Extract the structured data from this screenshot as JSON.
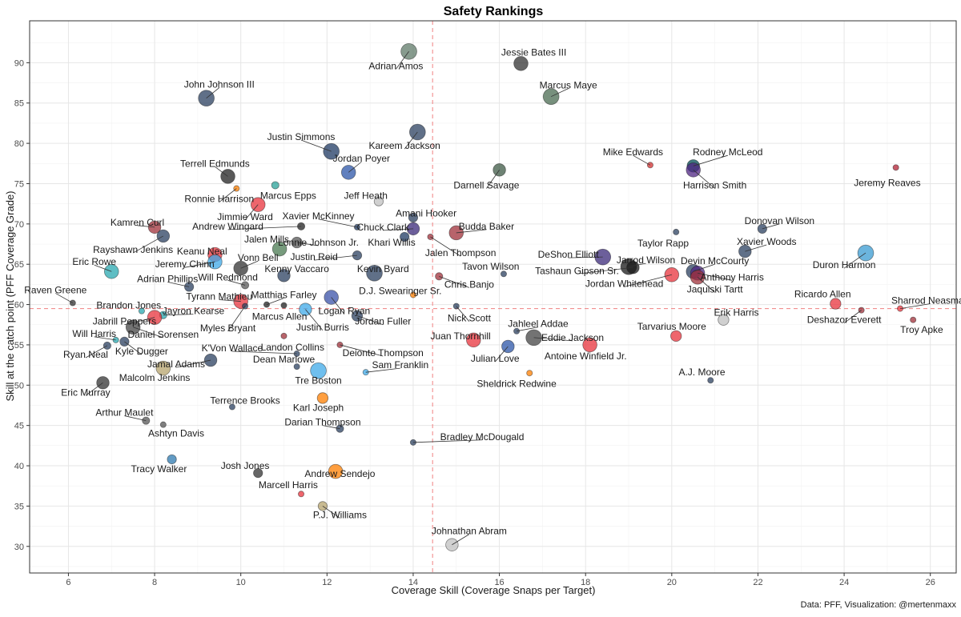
{
  "chart_data": {
    "type": "scatter",
    "title": "Safety Rankings",
    "xlabel": "Coverage Skill (Coverage Snaps per Target)",
    "ylabel": "Skill at the catch point (PFF Coverage Grade)",
    "caption": "Data: PFF, Visualization: @mertenmaxx",
    "xlim": [
      5.1,
      26.6
    ],
    "ylim": [
      26.7,
      95.2
    ],
    "xticks": [
      6,
      8,
      10,
      12,
      14,
      16,
      18,
      20,
      22,
      24,
      26
    ],
    "yticks": [
      30,
      35,
      40,
      45,
      50,
      55,
      60,
      65,
      70,
      75,
      80,
      85,
      90
    ],
    "ref_lines": {
      "x": 14.45,
      "y": 59.5
    },
    "grid": true,
    "points": [
      {
        "name": "Adrian Amos",
        "x": 13.9,
        "y": 91.4,
        "size": 8,
        "color": "#5f7a68",
        "lx": 13.6,
        "ly": 89.6
      },
      {
        "name": "Jessie Bates III",
        "x": 16.5,
        "y": 89.9,
        "size": 7,
        "color": "#333333",
        "lx": 16.8,
        "ly": 91.3
      },
      {
        "name": "Marcus Maye",
        "x": 17.2,
        "y": 85.8,
        "size": 8,
        "color": "#4a6b52",
        "lx": 17.6,
        "ly": 87.2
      },
      {
        "name": "John Johnson III",
        "x": 9.2,
        "y": 85.6,
        "size": 8,
        "color": "#2b4060",
        "lx": 9.5,
        "ly": 87.3
      },
      {
        "name": "Kareem Jackson",
        "x": 14.1,
        "y": 81.4,
        "size": 8,
        "color": "#2b4060",
        "lx": 13.8,
        "ly": 79.7
      },
      {
        "name": "Justin Simmons",
        "x": 12.1,
        "y": 79.0,
        "size": 8,
        "color": "#1f3a63",
        "lx": 11.4,
        "ly": 80.8
      },
      {
        "name": "Darnell Savage",
        "x": 16.0,
        "y": 76.7,
        "size": 6,
        "color": "#3d5a45",
        "lx": 15.7,
        "ly": 74.8
      },
      {
        "name": "Jordan Poyer",
        "x": 12.5,
        "y": 76.4,
        "size": 7,
        "color": "#2c56a8",
        "lx": 12.8,
        "ly": 78.1
      },
      {
        "name": "Mike Edwards",
        "x": 19.5,
        "y": 77.3,
        "size": 2,
        "color": "#d32f2f",
        "lx": 19.1,
        "ly": 78.9
      },
      {
        "name": "Rodney McLeod",
        "x": 20.5,
        "y": 77.2,
        "size": 6,
        "color": "#004c54",
        "lx": 21.3,
        "ly": 78.9
      },
      {
        "name": "Harrison Smith",
        "x": 20.5,
        "y": 76.7,
        "size": 7,
        "color": "#4f2683",
        "lx": 21.0,
        "ly": 74.8
      },
      {
        "name": "Jeremy Reaves",
        "x": 25.2,
        "y": 77.0,
        "size": 2,
        "color": "#b22234",
        "lx": 25.0,
        "ly": 75.1
      },
      {
        "name": "Terrell Edmunds",
        "x": 9.7,
        "y": 75.9,
        "size": 7,
        "color": "#222222",
        "lx": 9.4,
        "ly": 77.5
      },
      {
        "name": "Ronnie Harrison",
        "x": 9.9,
        "y": 74.4,
        "size": 2,
        "color": "#ff7f00",
        "lx": 9.5,
        "ly": 73.1
      },
      {
        "name": "Marcus Epps",
        "x": 10.8,
        "y": 74.8,
        "size": 3,
        "color": "#2aa198",
        "lx": 11.1,
        "ly": 73.5
      },
      {
        "name": "Jeff Heath",
        "x": 13.2,
        "y": 72.8,
        "size": 4,
        "color": "#c0c0c0",
        "lx": 12.9,
        "ly": 73.5
      },
      {
        "name": "Jimmie Ward",
        "x": 10.4,
        "y": 72.4,
        "size": 7,
        "color": "#e8333c",
        "lx": 10.1,
        "ly": 70.9
      },
      {
        "name": "Xavier McKinney",
        "x": 12.7,
        "y": 69.6,
        "size": 2,
        "color": "#1f3a63",
        "lx": 11.8,
        "ly": 71.0
      },
      {
        "name": "Amani Hooker",
        "x": 14.0,
        "y": 70.8,
        "size": 4,
        "color": "#2b4060",
        "lx": 14.3,
        "ly": 71.3
      },
      {
        "name": "Kamren Curl",
        "x": 8.0,
        "y": 69.6,
        "size": 6,
        "color": "#a0303a",
        "lx": 7.6,
        "ly": 70.2
      },
      {
        "name": "Andrew Wingard",
        "x": 11.4,
        "y": 69.7,
        "size": 3,
        "color": "#222222",
        "lx": 9.7,
        "ly": 69.7
      },
      {
        "name": "Chuck Clark",
        "x": 14.0,
        "y": 69.4,
        "size": 6,
        "color": "#3b2a7a",
        "lx": 13.3,
        "ly": 69.6
      },
      {
        "name": "Budda Baker",
        "x": 15.0,
        "y": 68.9,
        "size": 7,
        "color": "#a0303a",
        "lx": 15.7,
        "ly": 69.7
      },
      {
        "name": "Donovan Wilson",
        "x": 22.1,
        "y": 69.4,
        "size": 4,
        "color": "#2b4060",
        "lx": 22.5,
        "ly": 70.4
      },
      {
        "name": "Taylor Rapp",
        "x": 20.1,
        "y": 69.0,
        "size": 2,
        "color": "#2b4060",
        "lx": 19.8,
        "ly": 67.6
      },
      {
        "name": "Rayshawn Jenkins",
        "x": 8.2,
        "y": 68.5,
        "size": 6,
        "color": "#2b4060",
        "lx": 7.5,
        "ly": 66.8
      },
      {
        "name": "Lonnie Johnson Jr.",
        "x": 11.3,
        "y": 67.7,
        "size": 5,
        "color": "#555555",
        "lx": 11.8,
        "ly": 67.7
      },
      {
        "name": "Khari Willis",
        "x": 13.8,
        "y": 68.4,
        "size": 4,
        "color": "#1f3a63",
        "lx": 13.5,
        "ly": 67.7
      },
      {
        "name": "Jalen Mills",
        "x": 10.9,
        "y": 66.9,
        "size": 7,
        "color": "#4a7a52",
        "lx": 10.6,
        "ly": 68.1
      },
      {
        "name": "Jalen Thompson",
        "x": 14.4,
        "y": 68.4,
        "size": 2,
        "color": "#a0303a",
        "lx": 15.1,
        "ly": 66.4
      },
      {
        "name": "Xavier Woods",
        "x": 21.7,
        "y": 66.6,
        "size": 6,
        "color": "#2b4060",
        "lx": 22.2,
        "ly": 67.8
      },
      {
        "name": "Keanu Neal",
        "x": 9.4,
        "y": 66.2,
        "size": 7,
        "color": "#e8333c",
        "lx": 9.1,
        "ly": 66.6
      },
      {
        "name": "Justin Reid",
        "x": 12.7,
        "y": 66.1,
        "size": 4,
        "color": "#2b4060",
        "lx": 11.7,
        "ly": 65.9
      },
      {
        "name": "DeShon Elliott",
        "x": 18.4,
        "y": 65.9,
        "size": 8,
        "color": "#3b2a7a",
        "lx": 17.6,
        "ly": 66.2
      },
      {
        "name": "Duron Harmon",
        "x": 24.5,
        "y": 66.4,
        "size": 8,
        "color": "#3a9bd1",
        "lx": 24.0,
        "ly": 64.9
      },
      {
        "name": "Eric Rowe",
        "x": 7.0,
        "y": 64.1,
        "size": 7,
        "color": "#2aa8b0",
        "lx": 6.6,
        "ly": 65.3
      },
      {
        "name": "Jeremy Chinn",
        "x": 9.4,
        "y": 65.3,
        "size": 7,
        "color": "#3fa9e8",
        "lx": 8.7,
        "ly": 65.0
      },
      {
        "name": "Vonn Bell",
        "x": 10.0,
        "y": 64.5,
        "size": 7,
        "color": "#333333",
        "lx": 10.4,
        "ly": 65.8
      },
      {
        "name": "Kevin Byard",
        "x": 13.1,
        "y": 63.9,
        "size": 8,
        "color": "#2b4060",
        "lx": 13.3,
        "ly": 64.4
      },
      {
        "name": "Tavon Wilson",
        "x": 16.1,
        "y": 63.8,
        "size": 2,
        "color": "#2b4060",
        "lx": 15.8,
        "ly": 64.7
      },
      {
        "name": "Jarrod Wilson",
        "x": 19.0,
        "y": 64.7,
        "size": 8,
        "color": "#1a1a1a",
        "lx": 19.4,
        "ly": 65.5
      },
      {
        "name": "Tashaun Gipson Sr.",
        "x": 19.1,
        "y": 64.6,
        "size": 6,
        "color": "#1a1a1a",
        "lx": 17.8,
        "ly": 64.2
      },
      {
        "name": "Devin McCourty",
        "x": 20.5,
        "y": 64.1,
        "size": 7,
        "color": "#2b4060",
        "lx": 21.0,
        "ly": 65.4
      },
      {
        "name": "Anthony Harris",
        "x": 20.6,
        "y": 63.9,
        "size": 7,
        "color": "#4f2683",
        "lx": 21.4,
        "ly": 63.4
      },
      {
        "name": "Jaquiski Tartt",
        "x": 20.6,
        "y": 63.4,
        "size": 7,
        "color": "#a0303a",
        "lx": 21.0,
        "ly": 61.9
      },
      {
        "name": "Jordan Whitehead",
        "x": 20.0,
        "y": 63.7,
        "size": 7,
        "color": "#e8333c",
        "lx": 18.9,
        "ly": 62.6
      },
      {
        "name": "Kenny Vaccaro",
        "x": 11.0,
        "y": 63.6,
        "size": 6,
        "color": "#2b4060",
        "lx": 11.3,
        "ly": 64.4
      },
      {
        "name": "Adrian Phillips",
        "x": 8.8,
        "y": 62.2,
        "size": 4,
        "color": "#2b4060",
        "lx": 8.3,
        "ly": 63.2
      },
      {
        "name": "Will Redmond",
        "x": 10.1,
        "y": 62.4,
        "size": 3,
        "color": "#555555",
        "lx": 9.7,
        "ly": 63.4
      },
      {
        "name": "Chris Banjo",
        "x": 14.6,
        "y": 63.5,
        "size": 3,
        "color": "#a0303a",
        "lx": 15.3,
        "ly": 62.5
      },
      {
        "name": "D.J. Swearinger Sr.",
        "x": 14.0,
        "y": 61.2,
        "size": 2,
        "color": "#ff7f00",
        "lx": 13.7,
        "ly": 61.7
      },
      {
        "name": "Raven Greene",
        "x": 6.1,
        "y": 60.2,
        "size": 2,
        "color": "#333333",
        "lx": 5.7,
        "ly": 61.8
      },
      {
        "name": "Matthias Farley",
        "x": 10.6,
        "y": 60.0,
        "size": 2,
        "color": "#222222",
        "lx": 11.0,
        "ly": 61.2
      },
      {
        "name": "Tyrann Mathieu",
        "x": 10.0,
        "y": 60.4,
        "size": 7,
        "color": "#e8333c",
        "lx": 9.5,
        "ly": 61.0
      },
      {
        "name": "Marcus Allen",
        "x": 11.0,
        "y": 59.9,
        "size": 2,
        "color": "#222222",
        "lx": 10.9,
        "ly": 58.5
      },
      {
        "name": "Logan Ryan",
        "x": 12.1,
        "y": 60.9,
        "size": 7,
        "color": "#3a52a8",
        "lx": 12.4,
        "ly": 59.2
      },
      {
        "name": "Nick Scott",
        "x": 15.0,
        "y": 59.8,
        "size": 2,
        "color": "#2b4060",
        "lx": 15.3,
        "ly": 58.3
      },
      {
        "name": "Ricardo Allen",
        "x": 23.8,
        "y": 60.1,
        "size": 5,
        "color": "#e8333c",
        "lx": 23.5,
        "ly": 61.3
      },
      {
        "name": "Sharrod Neasman",
        "x": 25.3,
        "y": 59.5,
        "size": 2,
        "color": "#e8333c",
        "lx": 26.0,
        "ly": 60.5
      },
      {
        "name": "Deshazor Everett",
        "x": 24.4,
        "y": 59.3,
        "size": 2,
        "color": "#a0303a",
        "lx": 24.0,
        "ly": 58.1
      },
      {
        "name": "Brandon Jones",
        "x": 7.7,
        "y": 59.2,
        "size": 2,
        "color": "#2aa8b0",
        "lx": 7.4,
        "ly": 59.9
      },
      {
        "name": "Jayron Kearse",
        "x": 8.2,
        "y": 58.7,
        "size": 3,
        "color": "#2aa8b0",
        "lx": 8.9,
        "ly": 59.2
      },
      {
        "name": "Justin Burris",
        "x": 11.5,
        "y": 59.4,
        "size": 6,
        "color": "#3fa9e8",
        "lx": 11.9,
        "ly": 57.2
      },
      {
        "name": "Jordan Fuller",
        "x": 12.7,
        "y": 58.6,
        "size": 5,
        "color": "#2b4060",
        "lx": 13.3,
        "ly": 57.9
      },
      {
        "name": "Erik Harris",
        "x": 21.2,
        "y": 58.1,
        "size": 5,
        "color": "#c0c0c0",
        "lx": 21.5,
        "ly": 59.0
      },
      {
        "name": "Troy Apke",
        "x": 25.6,
        "y": 58.1,
        "size": 2,
        "color": "#a0303a",
        "lx": 25.8,
        "ly": 56.9
      },
      {
        "name": "Jabrill Peppers",
        "x": 8.0,
        "y": 58.4,
        "size": 7,
        "color": "#e8333c",
        "lx": 7.3,
        "ly": 57.9
      },
      {
        "name": "Myles Bryant",
        "x": 10.1,
        "y": 59.8,
        "size": 2,
        "color": "#2b4060",
        "lx": 9.7,
        "ly": 57.1
      },
      {
        "name": "Daniel Sorensen",
        "x": 7.5,
        "y": 57.2,
        "size": 7,
        "color": "#444444",
        "lx": 8.2,
        "ly": 56.3
      },
      {
        "name": "Will Harris",
        "x": 7.1,
        "y": 55.6,
        "size": 2,
        "color": "#2aa8b0",
        "lx": 6.6,
        "ly": 56.4
      },
      {
        "name": "Jahleel Addae",
        "x": 16.4,
        "y": 56.7,
        "size": 2,
        "color": "#2b4060",
        "lx": 16.9,
        "ly": 57.6
      },
      {
        "name": "Juan Thornhill",
        "x": 15.4,
        "y": 55.6,
        "size": 7,
        "color": "#e8333c",
        "lx": 15.1,
        "ly": 56.1
      },
      {
        "name": "Eddie Jackson",
        "x": 16.8,
        "y": 55.9,
        "size": 8,
        "color": "#444444",
        "lx": 17.7,
        "ly": 55.9
      },
      {
        "name": "Tarvarius Moore",
        "x": 20.1,
        "y": 56.1,
        "size": 5,
        "color": "#e8333c",
        "lx": 20.0,
        "ly": 57.3
      },
      {
        "name": "Landon Collins",
        "x": 11.0,
        "y": 56.1,
        "size": 2,
        "color": "#a0303a",
        "lx": 11.2,
        "ly": 54.7
      },
      {
        "name": "Kyle Dugger",
        "x": 7.3,
        "y": 55.4,
        "size": 4,
        "color": "#2b4060",
        "lx": 7.7,
        "ly": 54.2
      },
      {
        "name": "Julian Love",
        "x": 16.2,
        "y": 54.8,
        "size": 6,
        "color": "#2c56a8",
        "lx": 15.9,
        "ly": 53.3
      },
      {
        "name": "Antoine Winfield Jr.",
        "x": 18.1,
        "y": 55.0,
        "size": 7,
        "color": "#e8333c",
        "lx": 18.0,
        "ly": 53.6
      },
      {
        "name": "Deionte Thompson",
        "x": 12.3,
        "y": 55.0,
        "size": 2,
        "color": "#a0303a",
        "lx": 13.3,
        "ly": 54.0
      },
      {
        "name": "K'Von Wallace",
        "x": 11.3,
        "y": 53.9,
        "size": 2,
        "color": "#2b4060",
        "lx": 9.8,
        "ly": 54.6
      },
      {
        "name": "Ryan Neal",
        "x": 6.9,
        "y": 54.9,
        "size": 3,
        "color": "#2b4060",
        "lx": 6.4,
        "ly": 53.8
      },
      {
        "name": "Jamal Adams",
        "x": 9.3,
        "y": 53.1,
        "size": 6,
        "color": "#2b4060",
        "lx": 8.5,
        "ly": 52.6
      },
      {
        "name": "Dean Marlowe",
        "x": 11.3,
        "y": 52.3,
        "size": 2,
        "color": "#2b4060",
        "lx": 11.0,
        "ly": 53.2
      },
      {
        "name": "Sam Franklin",
        "x": 12.9,
        "y": 51.6,
        "size": 2,
        "color": "#3fa9e8",
        "lx": 13.7,
        "ly": 52.5
      },
      {
        "name": "Malcolm Jenkins",
        "x": 8.2,
        "y": 52.1,
        "size": 7,
        "color": "#b5a36c",
        "lx": 8.0,
        "ly": 50.9
      },
      {
        "name": "Tre Boston",
        "x": 11.8,
        "y": 51.8,
        "size": 8,
        "color": "#3fa9e8",
        "lx": 11.8,
        "ly": 50.6
      },
      {
        "name": "Sheldrick Redwine",
        "x": 16.7,
        "y": 51.5,
        "size": 2,
        "color": "#ff7f00",
        "lx": 16.4,
        "ly": 50.2
      },
      {
        "name": "A.J. Moore",
        "x": 20.9,
        "y": 50.6,
        "size": 2,
        "color": "#2b4060",
        "lx": 20.7,
        "ly": 51.6
      },
      {
        "name": "Eric Murray",
        "x": 6.8,
        "y": 50.3,
        "size": 6,
        "color": "#333333",
        "lx": 6.4,
        "ly": 49.1
      },
      {
        "name": "Karl Joseph",
        "x": 11.9,
        "y": 48.4,
        "size": 5,
        "color": "#ff7f00",
        "lx": 11.8,
        "ly": 47.2
      },
      {
        "name": "Terrence Brooks",
        "x": 9.8,
        "y": 47.3,
        "size": 2,
        "color": "#2b4060",
        "lx": 10.1,
        "ly": 48.1
      },
      {
        "name": "Arthur Maulet",
        "x": 7.8,
        "y": 45.6,
        "size": 3,
        "color": "#555555",
        "lx": 7.3,
        "ly": 46.6
      },
      {
        "name": "Ashtyn Davis",
        "x": 8.2,
        "y": 45.1,
        "size": 2,
        "color": "#555555",
        "lx": 8.5,
        "ly": 44.0
      },
      {
        "name": "Darian Thompson",
        "x": 12.3,
        "y": 44.6,
        "size": 3,
        "color": "#2b4060",
        "lx": 11.9,
        "ly": 45.4
      },
      {
        "name": "Bradley McDougald",
        "x": 14.0,
        "y": 42.9,
        "size": 2,
        "color": "#2b4060",
        "lx": 15.6,
        "ly": 43.6
      },
      {
        "name": "Tracy Walker",
        "x": 8.4,
        "y": 40.8,
        "size": 4,
        "color": "#2e7ab0",
        "lx": 8.1,
        "ly": 39.6
      },
      {
        "name": "Josh Jones",
        "x": 10.4,
        "y": 39.1,
        "size": 4,
        "color": "#333333",
        "lx": 10.1,
        "ly": 40.0
      },
      {
        "name": "Andrew Sendejo",
        "x": 12.2,
        "y": 39.3,
        "size": 7,
        "color": "#ff7f00",
        "lx": 12.3,
        "ly": 39.0
      },
      {
        "name": "Marcell Harris",
        "x": 11.4,
        "y": 36.5,
        "size": 2,
        "color": "#e8333c",
        "lx": 11.1,
        "ly": 37.6
      },
      {
        "name": "P.J. Williams",
        "x": 11.9,
        "y": 35.0,
        "size": 4,
        "color": "#b5a36c",
        "lx": 12.3,
        "ly": 33.9
      },
      {
        "name": "Johnathan Abram",
        "x": 14.9,
        "y": 30.2,
        "size": 6,
        "color": "#c0c0c0",
        "lx": 15.3,
        "ly": 31.9
      }
    ]
  }
}
